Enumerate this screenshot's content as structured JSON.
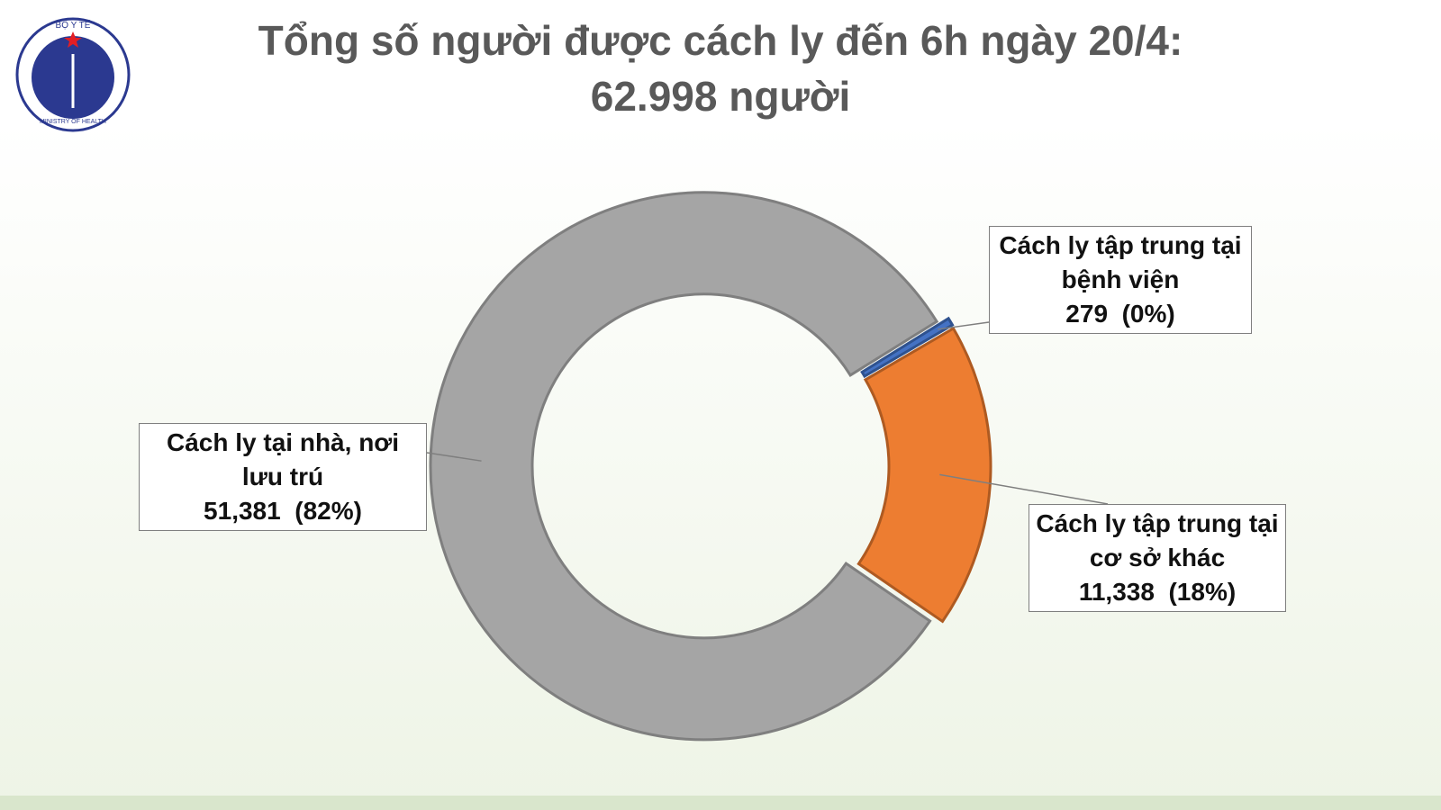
{
  "logo": {
    "top": "BỘ Y TẾ",
    "bottom": "MINISTRY OF HEALTH"
  },
  "chart_data": {
    "type": "donut",
    "title": "Tổng số người được cách ly đến 6h ngày 20/4:",
    "subtitle": "62.998 người",
    "categories": [
      "Cách ly tại nhà, nơi lưu trú",
      "Cách ly tập trung tại bệnh viện",
      "Cách ly tập trung tại cơ sở khác"
    ],
    "values": [
      51381,
      279,
      11338
    ],
    "value_labels": [
      "51,381",
      "279",
      "11,338"
    ],
    "percent_labels": [
      "(82%)",
      "(0%)",
      "(18%)"
    ],
    "colors": [
      "#a5a5a5",
      "#4472c4",
      "#ed7d31"
    ]
  }
}
